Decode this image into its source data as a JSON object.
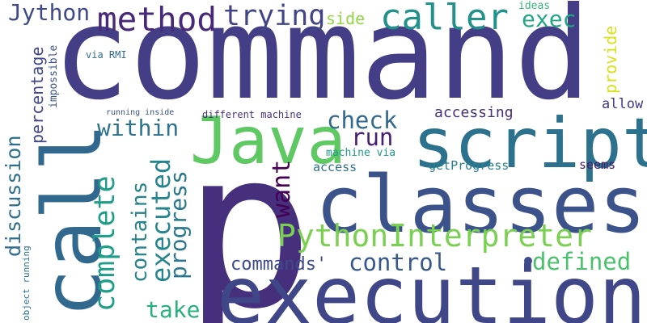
{
  "words": [
    {
      "id": "command",
      "text": "command",
      "color": "#433e85",
      "orientation": "horizontal"
    },
    {
      "id": "p",
      "text": "p",
      "color": "#46307e",
      "orientation": "horizontal"
    },
    {
      "id": "execution",
      "text": "execution",
      "color": "#3f4788",
      "orientation": "horizontal"
    },
    {
      "id": "classes",
      "text": "classes",
      "color": "#3b528b",
      "orientation": "horizontal"
    },
    {
      "id": "call",
      "text": "call",
      "color": "#31688e",
      "orientation": "vertical"
    },
    {
      "id": "script",
      "text": "script",
      "color": "#2c728e",
      "orientation": "horizontal"
    },
    {
      "id": "java",
      "text": "Java",
      "color": "#5ec962",
      "orientation": "horizontal"
    },
    {
      "id": "python-interpreter",
      "text": "PythonInterpreter",
      "color": "#7ad151",
      "orientation": "horizontal"
    },
    {
      "id": "method",
      "text": "method",
      "color": "#482878",
      "orientation": "horizontal"
    },
    {
      "id": "caller",
      "text": "caller",
      "color": "#21918c",
      "orientation": "horizontal"
    },
    {
      "id": "trying",
      "text": "trying",
      "color": "#414487",
      "orientation": "horizontal"
    },
    {
      "id": "complete",
      "text": "complete",
      "color": "#1f9e89",
      "orientation": "vertical"
    },
    {
      "id": "jython",
      "text": "Jython",
      "color": "#3e4989",
      "orientation": "horizontal"
    },
    {
      "id": "executed",
      "text": "executed",
      "color": "#25858e",
      "orientation": "vertical"
    },
    {
      "id": "progress",
      "text": "progress",
      "color": "#2a788e",
      "orientation": "vertical"
    },
    {
      "id": "contains",
      "text": "contains",
      "color": "#26828e",
      "orientation": "vertical"
    },
    {
      "id": "discussion",
      "text": "discussion",
      "color": "#2e6e8e",
      "orientation": "vertical"
    },
    {
      "id": "want",
      "text": "want",
      "color": "#440154",
      "orientation": "vertical"
    },
    {
      "id": "exec",
      "text": "exec",
      "color": "#22a785",
      "orientation": "horizontal"
    },
    {
      "id": "within",
      "text": "within",
      "color": "#2c728e",
      "orientation": "horizontal"
    },
    {
      "id": "check",
      "text": "check",
      "color": "#31688e",
      "orientation": "horizontal"
    },
    {
      "id": "run",
      "text": "run",
      "color": "#481f70",
      "orientation": "horizontal"
    },
    {
      "id": "control",
      "text": "control",
      "color": "#38588c",
      "orientation": "horizontal"
    },
    {
      "id": "commands",
      "text": "commands'",
      "color": "#3e4a89",
      "orientation": "horizontal"
    },
    {
      "id": "defined",
      "text": "defined",
      "color": "#4ac16d",
      "orientation": "horizontal"
    },
    {
      "id": "take",
      "text": "take",
      "color": "#2ab07f",
      "orientation": "horizontal"
    },
    {
      "id": "percentage",
      "text": "percentage",
      "color": "#404688",
      "orientation": "vertical"
    },
    {
      "id": "side",
      "text": "side",
      "color": "#90d743",
      "orientation": "horizontal"
    },
    {
      "id": "provide",
      "text": "provide",
      "color": "#d8e219",
      "orientation": "vertical"
    },
    {
      "id": "accessing",
      "text": "accessing",
      "color": "#472d7b",
      "orientation": "horizontal"
    },
    {
      "id": "allow",
      "text": "allow",
      "color": "#443983",
      "orientation": "horizontal"
    },
    {
      "id": "seems",
      "text": "seems",
      "color": "#481a6c",
      "orientation": "horizontal"
    },
    {
      "id": "access",
      "text": "access",
      "color": "#2d708e",
      "orientation": "horizontal"
    },
    {
      "id": "get-progress",
      "text": "getProgress",
      "color": "#277f8e",
      "orientation": "horizontal"
    },
    {
      "id": "ideas",
      "text": "ideas",
      "color": "#35b779",
      "orientation": "horizontal"
    },
    {
      "id": "machine-via",
      "text": "machine via",
      "color": "#1f988b",
      "orientation": "horizontal"
    },
    {
      "id": "different-machine",
      "text": "different machine",
      "color": "#46327e",
      "orientation": "horizontal"
    },
    {
      "id": "via-rmi",
      "text": "via RMI",
      "color": "#306a8e",
      "orientation": "horizontal"
    },
    {
      "id": "impossible",
      "text": "impossible",
      "color": "#3b528b",
      "orientation": "vertical"
    },
    {
      "id": "running-inside",
      "text": "running inside",
      "color": "#3a538b",
      "orientation": "horizontal"
    },
    {
      "id": "object-running",
      "text": "object running",
      "color": "#2c738e",
      "orientation": "vertical"
    }
  ]
}
